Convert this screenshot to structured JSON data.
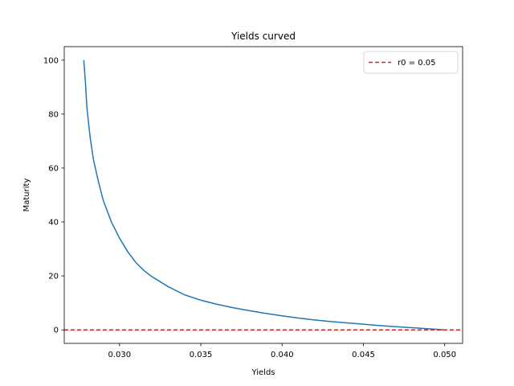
{
  "chart_data": {
    "type": "line",
    "title": "Yields curved",
    "xlabel": "Yields",
    "ylabel": "Maturity",
    "xlim": [
      0.0266,
      0.0511
    ],
    "ylim": [
      -5,
      105
    ],
    "xticks": [
      0.03,
      0.035,
      0.04,
      0.045,
      0.05
    ],
    "xtick_labels": [
      "0.030",
      "0.035",
      "0.040",
      "0.045",
      "0.050"
    ],
    "yticks": [
      0,
      20,
      40,
      60,
      80,
      100
    ],
    "ytick_labels": [
      "0",
      "20",
      "40",
      "60",
      "80",
      "100"
    ],
    "grid": false,
    "legend_position": "top-right",
    "series": [
      {
        "color": "#1f77b4",
        "x": [
          0.0278,
          0.0279,
          0.028,
          0.0282,
          0.0284,
          0.0287,
          0.029,
          0.0295,
          0.03,
          0.0305,
          0.031,
          0.0315,
          0.032,
          0.033,
          0.034,
          0.035,
          0.036,
          0.037,
          0.038,
          0.039,
          0.04,
          0.041,
          0.042,
          0.043,
          0.044,
          0.045,
          0.046,
          0.047,
          0.048,
          0.049,
          0.0495,
          0.05
        ],
        "y": [
          100,
          92,
          82,
          71,
          63,
          55,
          48,
          40,
          34,
          29,
          25,
          22,
          19.7,
          16,
          13,
          11,
          9.5,
          8.2,
          7.1,
          6.1,
          5.2,
          4.4,
          3.7,
          3.1,
          2.6,
          2.1,
          1.6,
          1.2,
          0.8,
          0.4,
          0.2,
          0
        ]
      },
      {
        "name": "r0 = 0.05",
        "color": "#d62728",
        "style": "dashed",
        "orientation": "horizontal",
        "y": 0
      }
    ]
  }
}
